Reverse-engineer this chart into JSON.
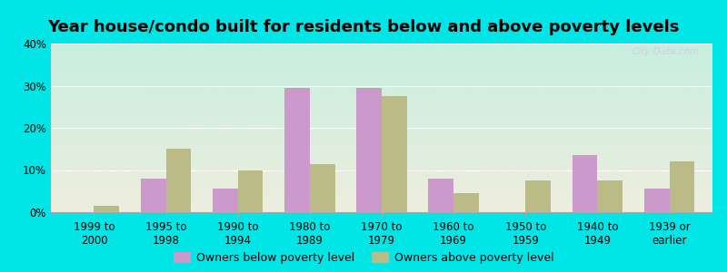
{
  "title": "Year house/condo built for residents below and above poverty levels",
  "categories": [
    "1999 to\n2000",
    "1995 to\n1998",
    "1990 to\n1994",
    "1980 to\n1989",
    "1970 to\n1979",
    "1960 to\n1969",
    "1950 to\n1959",
    "1940 to\n1949",
    "1939 or\nearlier"
  ],
  "below_poverty": [
    0,
    8,
    5.5,
    29.5,
    29.5,
    8,
    0,
    13.5,
    5.5
  ],
  "above_poverty": [
    1.5,
    15,
    10,
    11.5,
    27.5,
    4.5,
    7.5,
    7.5,
    12
  ],
  "below_color": "#cc99cc",
  "above_color": "#bbbb88",
  "background_outer": "#00e5e5",
  "background_plot_top": "#c8eee0",
  "background_plot_bottom": "#eeeedd",
  "ylim": [
    0,
    40
  ],
  "yticks": [
    0,
    10,
    20,
    30,
    40
  ],
  "ytick_labels": [
    "0%",
    "10%",
    "20%",
    "30%",
    "40%"
  ],
  "legend_below": "Owners below poverty level",
  "legend_above": "Owners above poverty level",
  "title_fontsize": 13,
  "tick_fontsize": 8.5,
  "legend_fontsize": 9,
  "bar_width": 0.35
}
